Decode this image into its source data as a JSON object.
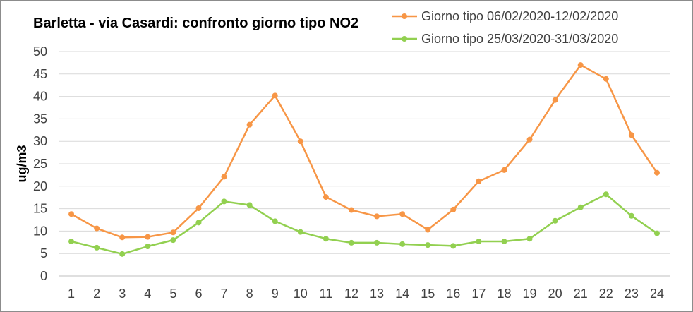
{
  "chart_data": {
    "type": "line",
    "title": "Barletta - via Casardi: confronto giorno tipo NO2",
    "ylabel": "ug/m3",
    "xlabel": "",
    "ylim": [
      0,
      50
    ],
    "yticks": [
      0,
      5,
      10,
      15,
      20,
      25,
      30,
      35,
      40,
      45,
      50
    ],
    "categories": [
      "1",
      "2",
      "3",
      "4",
      "5",
      "6",
      "7",
      "8",
      "9",
      "10",
      "11",
      "12",
      "13",
      "14",
      "15",
      "16",
      "17",
      "18",
      "19",
      "20",
      "21",
      "22",
      "23",
      "24"
    ],
    "grid": true,
    "legend_position": "top-right",
    "series": [
      {
        "name": "Giorno tipo 06/02/2020-12/02/2020",
        "color": "#f79646",
        "values": [
          13.8,
          10.6,
          8.6,
          8.7,
          9.7,
          15.1,
          22.1,
          33.7,
          40.2,
          30.0,
          17.6,
          14.7,
          13.3,
          13.8,
          10.3,
          14.8,
          21.1,
          23.6,
          30.4,
          39.2,
          47.0,
          43.9,
          31.4,
          23.0
        ]
      },
      {
        "name": "Giorno tipo 25/03/2020-31/03/2020",
        "color": "#92d050",
        "values": [
          7.7,
          6.3,
          4.9,
          6.6,
          8.0,
          11.9,
          16.6,
          15.8,
          12.2,
          9.8,
          8.3,
          7.4,
          7.4,
          7.1,
          6.9,
          6.7,
          7.7,
          7.7,
          8.3,
          12.3,
          15.3,
          18.2,
          13.4,
          9.5
        ]
      }
    ]
  }
}
